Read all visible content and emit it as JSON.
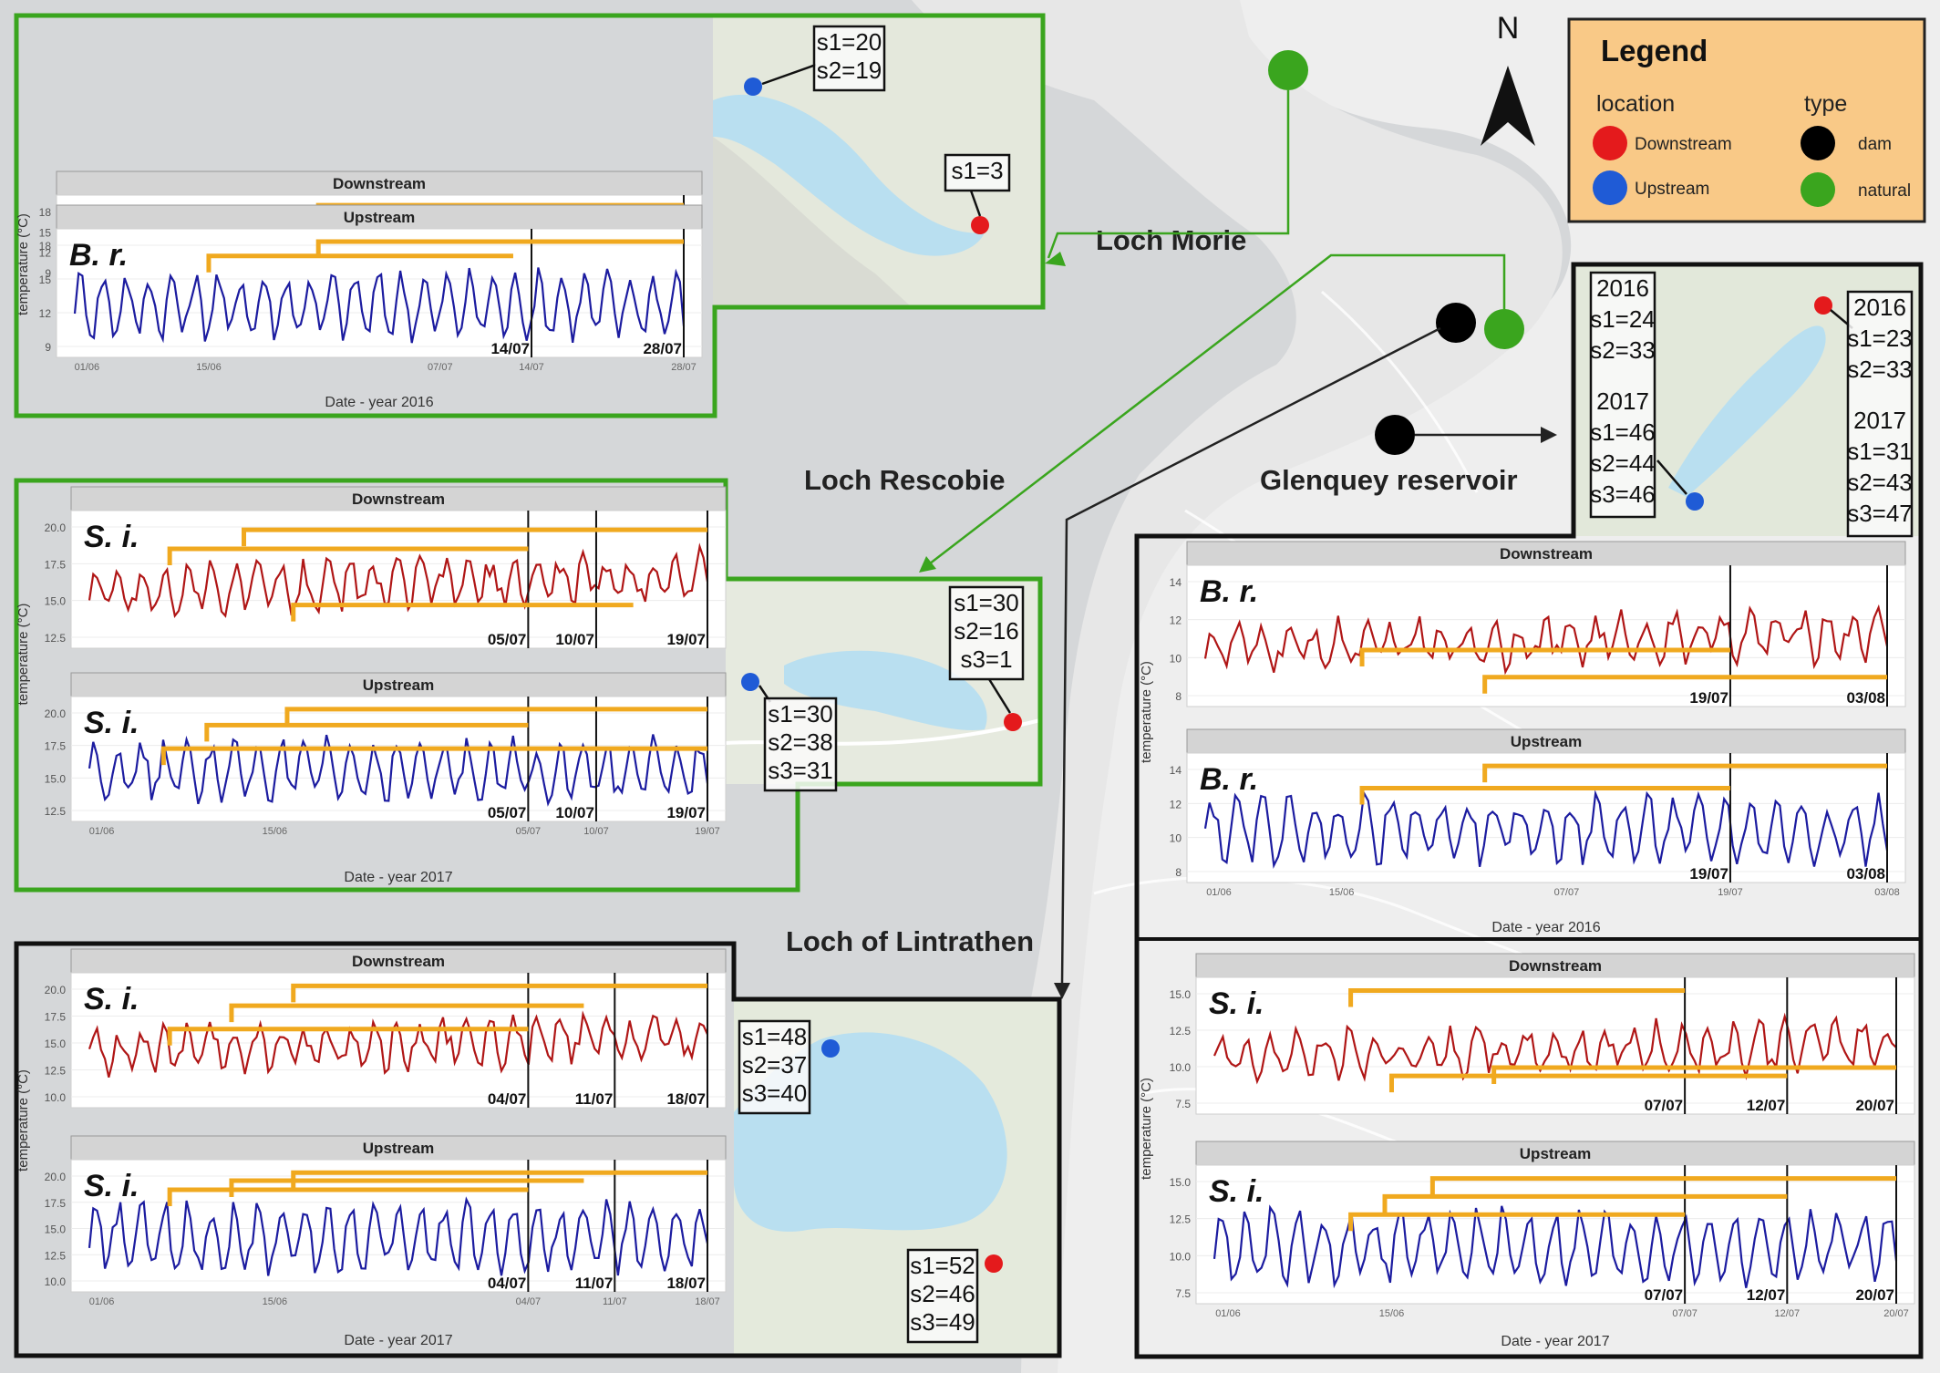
{
  "north_label": "N",
  "lochs": {
    "morie": "Loch Morie",
    "rescobie": "Loch Rescobie",
    "glenquey": "Glenquey reservoir",
    "lintrathen": "Loch of Lintrathen"
  },
  "legend": {
    "title": "Legend",
    "location_header": "location",
    "type_header": "type",
    "items_location": [
      {
        "label": "Downstream",
        "color": "#e41a1c"
      },
      {
        "label": "Upstream",
        "color": "#1f5bd6"
      }
    ],
    "items_type": [
      {
        "label": "dam",
        "color": "#000000"
      },
      {
        "label": "natural",
        "color": "#3aa51e"
      }
    ]
  },
  "colors": {
    "downstream_line": "#b01616",
    "upstream_line": "#1c1ca0",
    "window_bar": "#f0a91f",
    "natural_border": "#3aa51e",
    "dam_border": "#111111",
    "water": "#b9dff0",
    "legend_bg": "#f9c987"
  },
  "common": {
    "downstream": "Downstream",
    "upstream": "Upstream",
    "ylabel": "temperature (°C)",
    "date_2016": "Date - year 2016",
    "date_2017": "Date - year 2017"
  },
  "panels": [
    {
      "id": "morie",
      "species": "B. r.",
      "xlabel": "Date - year 2016",
      "xticks": [
        "01/06",
        "15/06",
        "07/07",
        "14/07",
        "28/07"
      ],
      "down_yticks": [
        "18",
        "15",
        "12",
        "9"
      ],
      "up_yticks": [
        "18",
        "15",
        "12",
        "9"
      ],
      "down_cutoffs": [
        "28/07"
      ],
      "up_cutoffs": [
        "14/07",
        "28/07"
      ]
    },
    {
      "id": "rescobie",
      "species": "S. i.",
      "xlabel": "Date - year 2017",
      "xticks": [
        "01/06",
        "15/06",
        "05/07",
        "10/07",
        "19/07"
      ],
      "down_yticks": [
        "20.0",
        "17.5",
        "15.0",
        "12.5"
      ],
      "up_yticks": [
        "20.0",
        "17.5",
        "15.0",
        "12.5"
      ],
      "down_cutoffs": [
        "05/07",
        "10/07",
        "19/07"
      ],
      "up_cutoffs": [
        "05/07",
        "10/07",
        "19/07"
      ]
    },
    {
      "id": "lintrathen",
      "species": "S. i.",
      "xlabel": "Date - year 2017",
      "xticks": [
        "01/06",
        "15/06",
        "04/07",
        "11/07",
        "18/07"
      ],
      "down_yticks": [
        "20.0",
        "17.5",
        "15.0",
        "12.5",
        "10.0"
      ],
      "up_yticks": [
        "20.0",
        "17.5",
        "15.0",
        "12.5",
        "10.0"
      ],
      "down_cutoffs": [
        "04/07",
        "11/07",
        "18/07"
      ],
      "up_cutoffs": [
        "04/07",
        "11/07",
        "18/07"
      ]
    },
    {
      "id": "glenquey2016",
      "species": "B. r.",
      "xlabel": "Date - year 2016",
      "xticks": [
        "01/06",
        "15/06",
        "07/07",
        "19/07",
        "03/08"
      ],
      "down_yticks": [
        "14",
        "12",
        "10",
        "8"
      ],
      "up_yticks": [
        "14",
        "12",
        "10",
        "8"
      ],
      "down_cutoffs": [
        "19/07",
        "03/08"
      ],
      "up_cutoffs": [
        "19/07",
        "03/08"
      ]
    },
    {
      "id": "glenquey2017",
      "species": "S. i.",
      "xlabel": "Date - year 2017",
      "xticks": [
        "01/06",
        "15/06",
        "07/07",
        "12/07",
        "20/07"
      ],
      "down_yticks": [
        "15.0",
        "12.5",
        "10.0",
        "7.5"
      ],
      "up_yticks": [
        "15.0",
        "12.5",
        "10.0",
        "7.5"
      ],
      "down_cutoffs": [
        "07/07",
        "12/07",
        "20/07"
      ],
      "up_cutoffs": [
        "07/07",
        "12/07",
        "20/07"
      ]
    }
  ],
  "samples": {
    "morie_up": [
      "s1=20",
      "s2=19"
    ],
    "morie_down": [
      "s1=3"
    ],
    "rescobie_down": [
      "s1=30",
      "s2=16",
      "s3=1"
    ],
    "rescobie_up": [
      "s1=30",
      "s2=38",
      "s3=31"
    ],
    "lintrathen_up": [
      "s1=48",
      "s2=37",
      "s3=40"
    ],
    "lintrathen_down": [
      "s1=52",
      "s2=46",
      "s3=49"
    ],
    "glenquey_up": [
      "2016",
      "s1=24",
      "s2=33",
      "2017",
      "s1=46",
      "s2=44",
      "s3=46"
    ],
    "glenquey_down": [
      "2016",
      "s1=23",
      "s2=33",
      "2017",
      "s1=31",
      "s2=43",
      "s3=47"
    ]
  }
}
